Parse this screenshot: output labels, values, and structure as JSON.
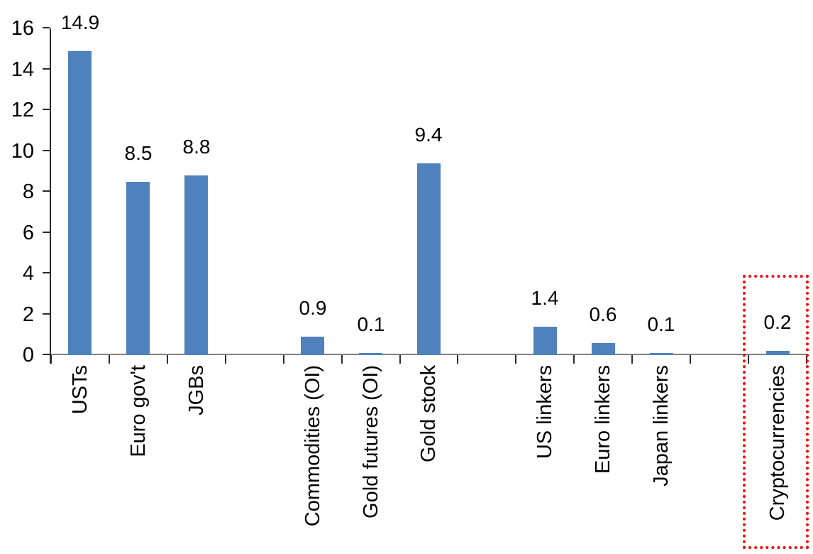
{
  "chart_data": {
    "type": "bar",
    "title": "",
    "xlabel": "",
    "ylabel": "",
    "ylim": [
      0,
      16
    ],
    "yticks": [
      0,
      2,
      4,
      6,
      8,
      10,
      12,
      14,
      16
    ],
    "grid": "off",
    "legend": "none",
    "categories": [
      "USTs",
      "Euro gov't",
      "JGBs",
      "Commodities (OI)",
      "Gold futures (OI)",
      "Gold stock",
      "US linkers",
      "Euro linkers",
      "Japan linkers",
      "Cryptocurrencies"
    ],
    "values": [
      14.9,
      8.5,
      8.8,
      0.9,
      0.1,
      9.4,
      1.4,
      0.6,
      0.1,
      0.2
    ],
    "value_labels": [
      "14.9",
      "8.5",
      "8.8",
      "0.9",
      "0.1",
      "9.4",
      "1.4",
      "0.6",
      "0.1",
      "0.2"
    ],
    "slot_indices": [
      0,
      1,
      2,
      4,
      5,
      6,
      8,
      9,
      10,
      12
    ],
    "total_slots": 13,
    "highlighted_category": "Cryptocurrencies",
    "bar_color": "#4F81BD",
    "highlight_box_color": "#FF0000",
    "axis_line_color_x": "#7f7f7f",
    "axis_line_color_y": "#2b2b2b",
    "text_color": "#000000"
  }
}
